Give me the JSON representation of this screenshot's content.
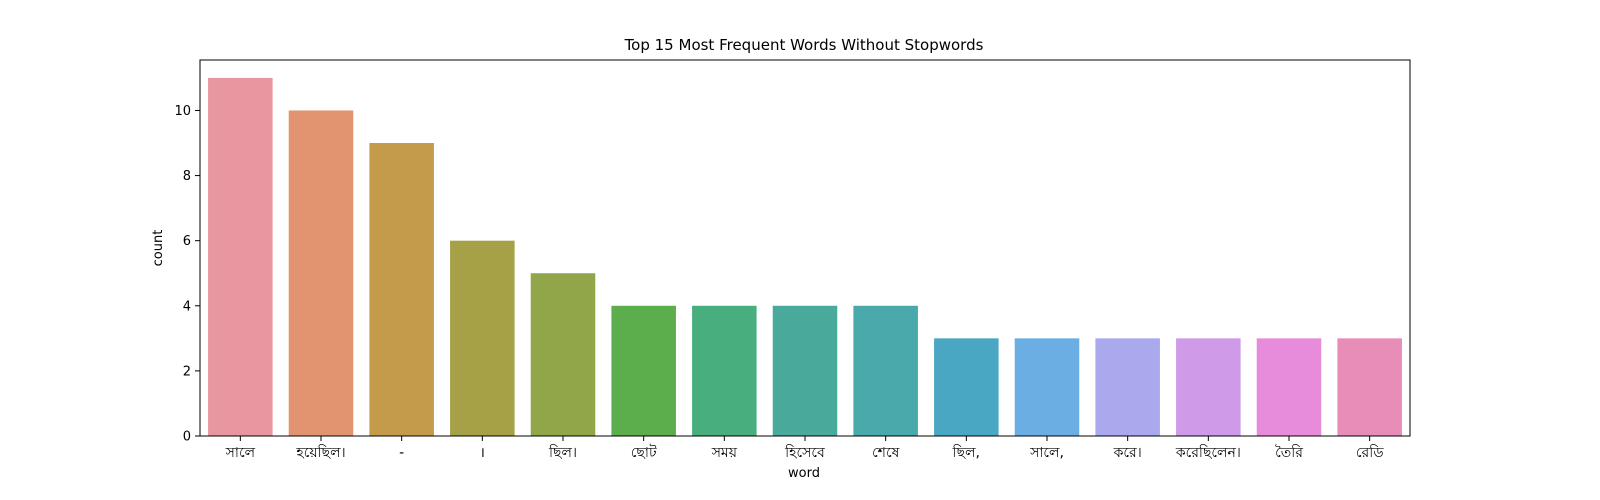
{
  "chart_data": {
    "type": "bar",
    "title": "Top 15 Most Frequent Words Without Stopwords",
    "xlabel": "word",
    "ylabel": "count",
    "ylim": [
      0,
      11.55
    ],
    "yticks": [
      0,
      2,
      4,
      6,
      8,
      10
    ],
    "categories": [
      "সালে",
      "হয়েছিল।",
      "-",
      "।",
      "ছিল।",
      "ছোট",
      "সময়",
      "হিসেবে",
      "শেষে",
      "ছিল,",
      "সালে,",
      "করে।",
      "করেছিলেন।",
      "তৈরি",
      "রেডি"
    ],
    "values": [
      11,
      10,
      9,
      6,
      5,
      4,
      4,
      4,
      4,
      3,
      3,
      3,
      3,
      3,
      3
    ],
    "colors": [
      "#e8969f",
      "#e29470",
      "#c49a4b",
      "#a6a046",
      "#91a648",
      "#5cad4b",
      "#49ae7e",
      "#49aa9c",
      "#4aa9ab",
      "#4aa7c4",
      "#6aaee3",
      "#aba9ee",
      "#cf9ae8",
      "#e78cdb",
      "#e78db8"
    ],
    "grid": false,
    "legend": "none"
  }
}
